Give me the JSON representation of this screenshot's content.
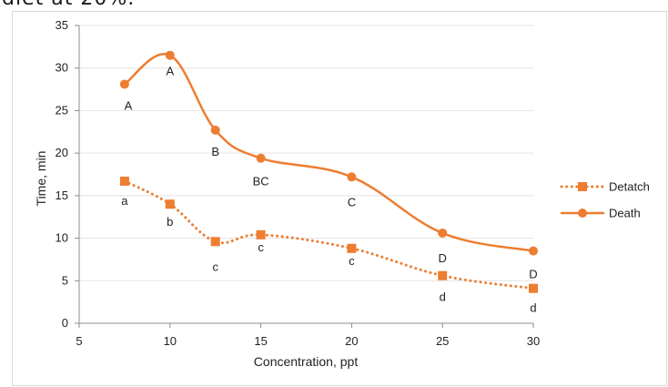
{
  "caption_fragment": "diet at 20%.",
  "chart_data": {
    "type": "line",
    "title": "",
    "xlabel": "Concentration, ppt",
    "ylabel": "Time, min",
    "xlim": [
      5,
      30
    ],
    "ylim": [
      0,
      35
    ],
    "x_ticks": [
      5,
      10,
      15,
      20,
      25,
      30
    ],
    "y_ticks": [
      0,
      5,
      10,
      15,
      20,
      25,
      30,
      35
    ],
    "grid": "horizontal",
    "legend_position": "right",
    "series": [
      {
        "name": "Detatch",
        "style": "dotted",
        "marker": "square",
        "color": "#ED7D31",
        "x": [
          7.5,
          10,
          12.5,
          15,
          20,
          25,
          30
        ],
        "y": [
          16.7,
          14.0,
          9.6,
          10.4,
          8.8,
          5.6,
          4.1
        ],
        "labels": [
          "a",
          "b",
          "c",
          "c",
          "c",
          "d",
          "d"
        ]
      },
      {
        "name": "Death",
        "style": "solid",
        "marker": "circle",
        "color": "#ED7D31",
        "x": [
          7.5,
          10,
          12.5,
          15,
          20,
          25,
          30
        ],
        "y": [
          28.1,
          31.5,
          22.7,
          19.4,
          17.2,
          10.6,
          8.5
        ],
        "labels": [
          "A",
          "A",
          "B",
          "BC",
          "C",
          "D",
          "D"
        ]
      }
    ]
  }
}
